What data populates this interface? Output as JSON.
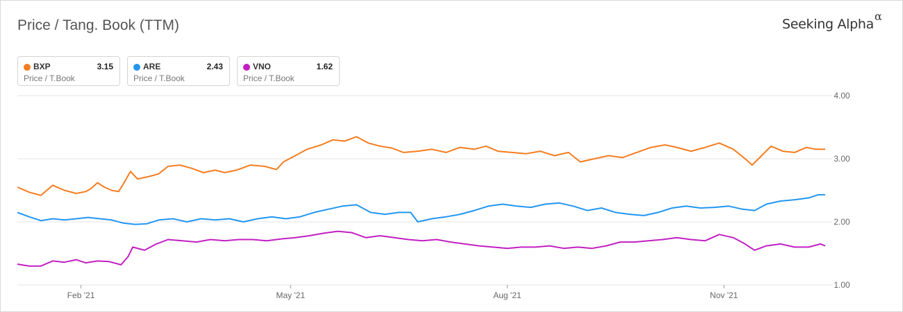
{
  "header": {
    "title": "Price / Tang. Book (TTM)",
    "brand": "Seeking Alpha",
    "brand_symbol": "α"
  },
  "legend": [
    {
      "ticker": "BXP",
      "value": "3.15",
      "metric": "Price / T.Book",
      "color": "#f57c1f"
    },
    {
      "ticker": "ARE",
      "value": "2.43",
      "metric": "Price / T.Book",
      "color": "#2196f3"
    },
    {
      "ticker": "VNO",
      "value": "1.62",
      "metric": "Price / T.Book",
      "color": "#c21fc2"
    }
  ],
  "chart_data": {
    "type": "line",
    "title": "Price / Tang. Book (TTM)",
    "xlabel": "",
    "ylabel": "",
    "x_ticks": [
      "Feb '21",
      "May '21",
      "Aug '21",
      "Nov '21"
    ],
    "y_ticks": [
      "4.00",
      "3.00",
      "2.00",
      "1.00"
    ],
    "ylim": [
      1.0,
      4.0
    ],
    "xlim": [
      "2021-01-05",
      "2021-12-14"
    ],
    "grid": true,
    "y_axis_side": "right",
    "series": [
      {
        "name": "BXP",
        "color": "#f57c1f",
        "points": [
          [
            "2021-01-05",
            2.55
          ],
          [
            "2021-01-10",
            2.47
          ],
          [
            "2021-01-15",
            2.42
          ],
          [
            "2021-01-20",
            2.58
          ],
          [
            "2021-01-25",
            2.5
          ],
          [
            "2021-01-30",
            2.45
          ],
          [
            "2021-02-03",
            2.48
          ],
          [
            "2021-02-05",
            2.52
          ],
          [
            "2021-02-08",
            2.62
          ],
          [
            "2021-02-11",
            2.55
          ],
          [
            "2021-02-14",
            2.5
          ],
          [
            "2021-02-17",
            2.48
          ],
          [
            "2021-02-19",
            2.6
          ],
          [
            "2021-02-22",
            2.8
          ],
          [
            "2021-02-25",
            2.68
          ],
          [
            "2021-03-02",
            2.72
          ],
          [
            "2021-03-06",
            2.76
          ],
          [
            "2021-03-10",
            2.88
          ],
          [
            "2021-03-15",
            2.9
          ],
          [
            "2021-03-20",
            2.85
          ],
          [
            "2021-03-25",
            2.78
          ],
          [
            "2021-03-30",
            2.82
          ],
          [
            "2021-04-03",
            2.78
          ],
          [
            "2021-04-08",
            2.82
          ],
          [
            "2021-04-14",
            2.9
          ],
          [
            "2021-04-20",
            2.88
          ],
          [
            "2021-04-25",
            2.83
          ],
          [
            "2021-04-28",
            2.95
          ],
          [
            "2021-05-03",
            3.05
          ],
          [
            "2021-05-08",
            3.15
          ],
          [
            "2021-05-14",
            3.22
          ],
          [
            "2021-05-19",
            3.3
          ],
          [
            "2021-05-24",
            3.28
          ],
          [
            "2021-05-29",
            3.35
          ],
          [
            "2021-06-03",
            3.25
          ],
          [
            "2021-06-08",
            3.2
          ],
          [
            "2021-06-13",
            3.17
          ],
          [
            "2021-06-18",
            3.1
          ],
          [
            "2021-06-24",
            3.12
          ],
          [
            "2021-06-30",
            3.15
          ],
          [
            "2021-07-06",
            3.1
          ],
          [
            "2021-07-12",
            3.18
          ],
          [
            "2021-07-18",
            3.15
          ],
          [
            "2021-07-23",
            3.2
          ],
          [
            "2021-07-28",
            3.12
          ],
          [
            "2021-08-03",
            3.1
          ],
          [
            "2021-08-09",
            3.08
          ],
          [
            "2021-08-15",
            3.12
          ],
          [
            "2021-08-21",
            3.05
          ],
          [
            "2021-08-27",
            3.1
          ],
          [
            "2021-09-01",
            2.95
          ],
          [
            "2021-09-07",
            3.0
          ],
          [
            "2021-09-13",
            3.05
          ],
          [
            "2021-09-19",
            3.02
          ],
          [
            "2021-09-25",
            3.1
          ],
          [
            "2021-10-01",
            3.18
          ],
          [
            "2021-10-07",
            3.22
          ],
          [
            "2021-10-12",
            3.18
          ],
          [
            "2021-10-18",
            3.12
          ],
          [
            "2021-10-24",
            3.18
          ],
          [
            "2021-10-30",
            3.25
          ],
          [
            "2021-11-05",
            3.15
          ],
          [
            "2021-11-10",
            3.0
          ],
          [
            "2021-11-13",
            2.9
          ],
          [
            "2021-11-17",
            3.05
          ],
          [
            "2021-11-21",
            3.2
          ],
          [
            "2021-11-26",
            3.12
          ],
          [
            "2021-12-01",
            3.1
          ],
          [
            "2021-12-06",
            3.18
          ],
          [
            "2021-12-10",
            3.15
          ],
          [
            "2021-12-14",
            3.15
          ]
        ]
      },
      {
        "name": "ARE",
        "color": "#2196f3",
        "points": [
          [
            "2021-01-05",
            2.15
          ],
          [
            "2021-01-10",
            2.08
          ],
          [
            "2021-01-15",
            2.02
          ],
          [
            "2021-01-20",
            2.05
          ],
          [
            "2021-01-25",
            2.03
          ],
          [
            "2021-01-30",
            2.05
          ],
          [
            "2021-02-04",
            2.07
          ],
          [
            "2021-02-09",
            2.05
          ],
          [
            "2021-02-14",
            2.03
          ],
          [
            "2021-02-19",
            1.98
          ],
          [
            "2021-02-24",
            1.96
          ],
          [
            "2021-03-01",
            1.97
          ],
          [
            "2021-03-06",
            2.03
          ],
          [
            "2021-03-12",
            2.05
          ],
          [
            "2021-03-18",
            2.0
          ],
          [
            "2021-03-24",
            2.05
          ],
          [
            "2021-03-30",
            2.03
          ],
          [
            "2021-04-05",
            2.05
          ],
          [
            "2021-04-11",
            2.0
          ],
          [
            "2021-04-17",
            2.05
          ],
          [
            "2021-04-23",
            2.08
          ],
          [
            "2021-04-29",
            2.05
          ],
          [
            "2021-05-05",
            2.08
          ],
          [
            "2021-05-11",
            2.15
          ],
          [
            "2021-05-17",
            2.2
          ],
          [
            "2021-05-23",
            2.25
          ],
          [
            "2021-05-29",
            2.27
          ],
          [
            "2021-06-04",
            2.15
          ],
          [
            "2021-06-10",
            2.12
          ],
          [
            "2021-06-16",
            2.15
          ],
          [
            "2021-06-21",
            2.15
          ],
          [
            "2021-06-24",
            2.0
          ],
          [
            "2021-06-30",
            2.05
          ],
          [
            "2021-07-06",
            2.08
          ],
          [
            "2021-07-12",
            2.12
          ],
          [
            "2021-07-18",
            2.18
          ],
          [
            "2021-07-24",
            2.25
          ],
          [
            "2021-07-30",
            2.28
          ],
          [
            "2021-08-05",
            2.25
          ],
          [
            "2021-08-11",
            2.23
          ],
          [
            "2021-08-17",
            2.28
          ],
          [
            "2021-08-23",
            2.3
          ],
          [
            "2021-08-29",
            2.25
          ],
          [
            "2021-09-04",
            2.18
          ],
          [
            "2021-09-10",
            2.22
          ],
          [
            "2021-09-16",
            2.15
          ],
          [
            "2021-09-22",
            2.12
          ],
          [
            "2021-09-28",
            2.1
          ],
          [
            "2021-10-04",
            2.15
          ],
          [
            "2021-10-10",
            2.22
          ],
          [
            "2021-10-16",
            2.25
          ],
          [
            "2021-10-22",
            2.22
          ],
          [
            "2021-10-28",
            2.23
          ],
          [
            "2021-11-03",
            2.25
          ],
          [
            "2021-11-09",
            2.2
          ],
          [
            "2021-11-14",
            2.18
          ],
          [
            "2021-11-19",
            2.28
          ],
          [
            "2021-11-25",
            2.33
          ],
          [
            "2021-12-01",
            2.35
          ],
          [
            "2021-12-07",
            2.38
          ],
          [
            "2021-12-11",
            2.43
          ],
          [
            "2021-12-14",
            2.43
          ]
        ]
      },
      {
        "name": "VNO",
        "color": "#c21fc2",
        "points": [
          [
            "2021-01-05",
            1.33
          ],
          [
            "2021-01-10",
            1.3
          ],
          [
            "2021-01-15",
            1.3
          ],
          [
            "2021-01-20",
            1.38
          ],
          [
            "2021-01-25",
            1.36
          ],
          [
            "2021-01-30",
            1.4
          ],
          [
            "2021-02-03",
            1.35
          ],
          [
            "2021-02-08",
            1.38
          ],
          [
            "2021-02-13",
            1.37
          ],
          [
            "2021-02-18",
            1.32
          ],
          [
            "2021-02-21",
            1.45
          ],
          [
            "2021-02-23",
            1.6
          ],
          [
            "2021-02-28",
            1.55
          ],
          [
            "2021-03-05",
            1.65
          ],
          [
            "2021-03-10",
            1.72
          ],
          [
            "2021-03-16",
            1.7
          ],
          [
            "2021-03-22",
            1.68
          ],
          [
            "2021-03-28",
            1.72
          ],
          [
            "2021-04-03",
            1.7
          ],
          [
            "2021-04-09",
            1.72
          ],
          [
            "2021-04-15",
            1.72
          ],
          [
            "2021-04-21",
            1.7
          ],
          [
            "2021-04-27",
            1.73
          ],
          [
            "2021-05-03",
            1.75
          ],
          [
            "2021-05-09",
            1.78
          ],
          [
            "2021-05-15",
            1.82
          ],
          [
            "2021-05-21",
            1.85
          ],
          [
            "2021-05-27",
            1.83
          ],
          [
            "2021-06-02",
            1.75
          ],
          [
            "2021-06-08",
            1.78
          ],
          [
            "2021-06-14",
            1.75
          ],
          [
            "2021-06-20",
            1.72
          ],
          [
            "2021-06-26",
            1.7
          ],
          [
            "2021-07-02",
            1.72
          ],
          [
            "2021-07-08",
            1.68
          ],
          [
            "2021-07-14",
            1.65
          ],
          [
            "2021-07-20",
            1.62
          ],
          [
            "2021-07-26",
            1.6
          ],
          [
            "2021-08-01",
            1.58
          ],
          [
            "2021-08-07",
            1.6
          ],
          [
            "2021-08-13",
            1.6
          ],
          [
            "2021-08-19",
            1.62
          ],
          [
            "2021-08-25",
            1.58
          ],
          [
            "2021-08-31",
            1.6
          ],
          [
            "2021-09-06",
            1.58
          ],
          [
            "2021-09-12",
            1.62
          ],
          [
            "2021-09-18",
            1.68
          ],
          [
            "2021-09-24",
            1.68
          ],
          [
            "2021-09-30",
            1.7
          ],
          [
            "2021-10-06",
            1.72
          ],
          [
            "2021-10-12",
            1.75
          ],
          [
            "2021-10-18",
            1.72
          ],
          [
            "2021-10-24",
            1.7
          ],
          [
            "2021-10-30",
            1.8
          ],
          [
            "2021-11-05",
            1.75
          ],
          [
            "2021-11-10",
            1.65
          ],
          [
            "2021-11-14",
            1.55
          ],
          [
            "2021-11-19",
            1.62
          ],
          [
            "2021-11-25",
            1.65
          ],
          [
            "2021-12-01",
            1.6
          ],
          [
            "2021-12-07",
            1.6
          ],
          [
            "2021-12-12",
            1.65
          ],
          [
            "2021-12-14",
            1.62
          ]
        ]
      }
    ]
  }
}
